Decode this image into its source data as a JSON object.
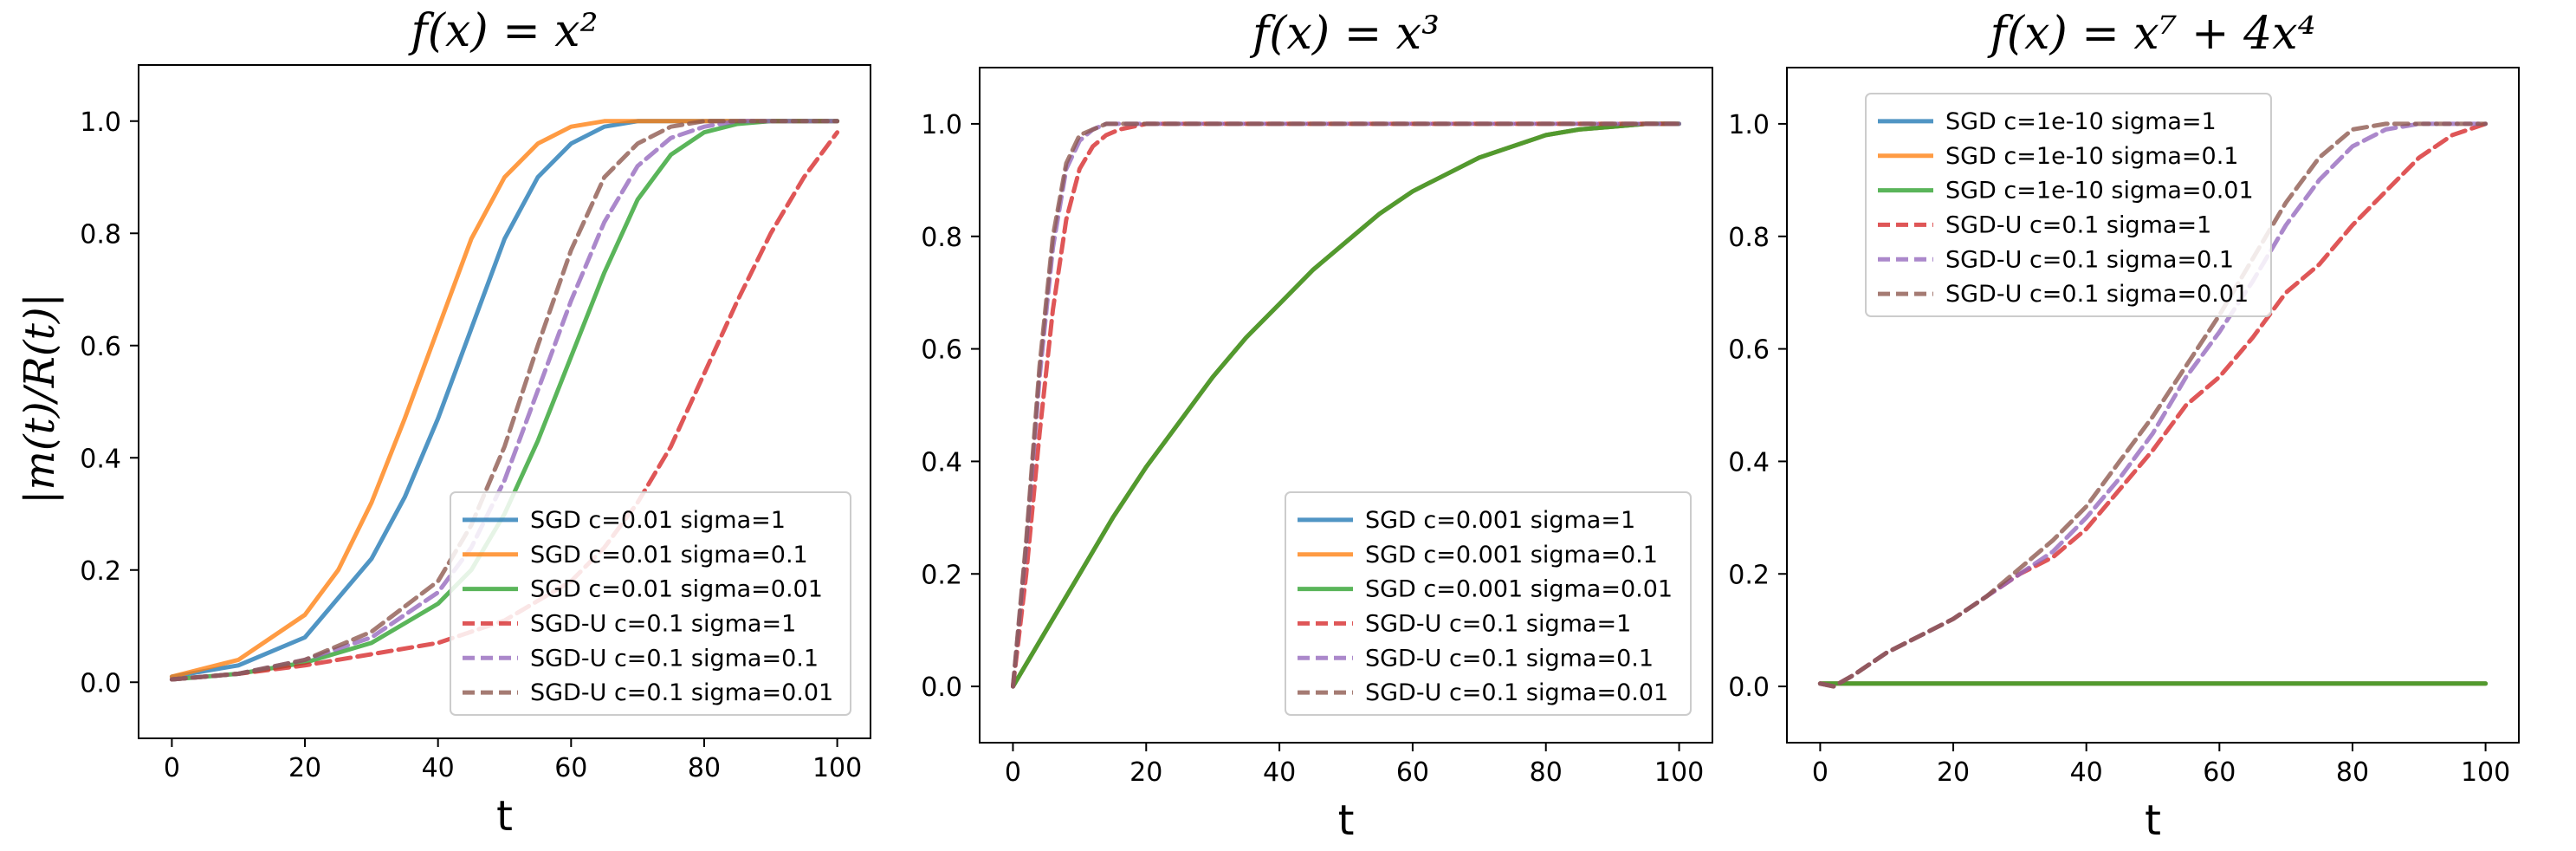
{
  "figure": {
    "ylabel": "|m(t)/R(t)|",
    "xlabel": "t"
  },
  "chart_data": [
    {
      "type": "line",
      "title": "f(x) = x²",
      "xlabel": "t",
      "ylabel": "|m(t)/R(t)|",
      "xlim": [
        -5,
        105
      ],
      "ylim": [
        -0.1,
        1.1
      ],
      "xticks": [
        0,
        20,
        40,
        60,
        80,
        100
      ],
      "yticks": [
        0.0,
        0.2,
        0.4,
        0.6,
        0.8,
        1.0
      ],
      "xtick_labels": [
        "0",
        "20",
        "40",
        "60",
        "80",
        "100"
      ],
      "ytick_labels": [
        "0.0",
        "0.2",
        "0.4",
        "0.6",
        "0.8",
        "1.0"
      ],
      "legend_position": "lower-right",
      "series": [
        {
          "name": "SGD c=0.01 sigma=1",
          "color": "#1f77b4",
          "dash": "solid",
          "x": [
            0,
            10,
            20,
            30,
            35,
            40,
            45,
            50,
            55,
            60,
            65,
            70,
            75,
            80,
            90,
            100
          ],
          "values": [
            0.01,
            0.03,
            0.08,
            0.22,
            0.33,
            0.47,
            0.63,
            0.79,
            0.9,
            0.96,
            0.99,
            1.0,
            1.0,
            1.0,
            1.0,
            1.0
          ]
        },
        {
          "name": "SGD c=0.01 sigma=0.1",
          "color": "#ff7f0e",
          "dash": "solid",
          "x": [
            0,
            10,
            20,
            25,
            30,
            35,
            40,
            45,
            50,
            55,
            60,
            65,
            70,
            75,
            80,
            100
          ],
          "values": [
            0.01,
            0.04,
            0.12,
            0.2,
            0.32,
            0.47,
            0.63,
            0.79,
            0.9,
            0.96,
            0.99,
            1.0,
            1.0,
            1.0,
            1.0,
            1.0
          ]
        },
        {
          "name": "SGD c=0.01 sigma=0.01",
          "color": "#2ca02c",
          "dash": "solid",
          "x": [
            0,
            10,
            20,
            30,
            40,
            45,
            50,
            55,
            60,
            65,
            70,
            75,
            80,
            85,
            90,
            100
          ],
          "values": [
            0.005,
            0.015,
            0.035,
            0.07,
            0.14,
            0.2,
            0.3,
            0.43,
            0.58,
            0.73,
            0.86,
            0.94,
            0.98,
            0.995,
            1.0,
            1.0
          ]
        },
        {
          "name": "SGD-U c=0.1 sigma=1",
          "color": "#d62728",
          "dash": "dashed",
          "x": [
            0,
            10,
            20,
            30,
            40,
            50,
            60,
            65,
            70,
            75,
            80,
            85,
            90,
            95,
            100
          ],
          "values": [
            0.005,
            0.015,
            0.03,
            0.05,
            0.07,
            0.11,
            0.18,
            0.24,
            0.32,
            0.42,
            0.55,
            0.68,
            0.8,
            0.9,
            0.98
          ]
        },
        {
          "name": "SGD-U c=0.1 sigma=0.1",
          "color": "#9467bd",
          "dash": "dashed",
          "x": [
            0,
            10,
            20,
            30,
            40,
            45,
            50,
            55,
            60,
            65,
            70,
            75,
            80,
            85,
            90,
            100
          ],
          "values": [
            0.005,
            0.015,
            0.04,
            0.08,
            0.16,
            0.24,
            0.36,
            0.52,
            0.68,
            0.82,
            0.92,
            0.97,
            0.99,
            1.0,
            1.0,
            1.0
          ]
        },
        {
          "name": "SGD-U c=0.1 sigma=0.01",
          "color": "#8c564b",
          "dash": "dashed",
          "x": [
            0,
            10,
            20,
            30,
            40,
            45,
            50,
            55,
            60,
            65,
            70,
            75,
            80,
            90,
            100
          ],
          "values": [
            0.005,
            0.015,
            0.04,
            0.09,
            0.18,
            0.28,
            0.42,
            0.6,
            0.77,
            0.9,
            0.96,
            0.99,
            1.0,
            1.0,
            1.0
          ]
        }
      ]
    },
    {
      "type": "line",
      "title": "f(x) = x³",
      "xlabel": "t",
      "ylabel": "",
      "xlim": [
        -5,
        105
      ],
      "ylim": [
        -0.1,
        1.1
      ],
      "xticks": [
        0,
        20,
        40,
        60,
        80,
        100
      ],
      "yticks": [
        0.0,
        0.2,
        0.4,
        0.6,
        0.8,
        1.0
      ],
      "xtick_labels": [
        "0",
        "20",
        "40",
        "60",
        "80",
        "100"
      ],
      "ytick_labels": [
        "0.0",
        "0.2",
        "0.4",
        "0.6",
        "0.8",
        "1.0"
      ],
      "legend_position": "lower-right",
      "series": [
        {
          "name": "SGD c=0.001 sigma=1",
          "color": "#1f77b4",
          "dash": "solid",
          "x": [
            0,
            5,
            10,
            15,
            20,
            25,
            30,
            35,
            40,
            45,
            50,
            55,
            60,
            65,
            70,
            75,
            80,
            85,
            90,
            95,
            100
          ],
          "values": [
            0.0,
            0.1,
            0.2,
            0.3,
            0.39,
            0.47,
            0.55,
            0.62,
            0.68,
            0.74,
            0.79,
            0.84,
            0.88,
            0.91,
            0.94,
            0.96,
            0.98,
            0.99,
            0.995,
            1.0,
            1.0
          ]
        },
        {
          "name": "SGD c=0.001 sigma=0.1",
          "color": "#ff7f0e",
          "dash": "solid",
          "x": [
            0,
            5,
            10,
            15,
            20,
            25,
            30,
            35,
            40,
            45,
            50,
            55,
            60,
            65,
            70,
            75,
            80,
            85,
            90,
            95,
            100
          ],
          "values": [
            0.0,
            0.1,
            0.2,
            0.3,
            0.39,
            0.47,
            0.55,
            0.62,
            0.68,
            0.74,
            0.79,
            0.84,
            0.88,
            0.91,
            0.94,
            0.96,
            0.98,
            0.99,
            0.995,
            1.0,
            1.0
          ]
        },
        {
          "name": "SGD c=0.001 sigma=0.01",
          "color": "#2ca02c",
          "dash": "solid",
          "x": [
            0,
            5,
            10,
            15,
            20,
            25,
            30,
            35,
            40,
            45,
            50,
            55,
            60,
            65,
            70,
            75,
            80,
            85,
            90,
            95,
            100
          ],
          "values": [
            0.0,
            0.1,
            0.2,
            0.3,
            0.39,
            0.47,
            0.55,
            0.62,
            0.68,
            0.74,
            0.79,
            0.84,
            0.88,
            0.91,
            0.94,
            0.96,
            0.98,
            0.99,
            0.995,
            1.0,
            1.0
          ]
        },
        {
          "name": "SGD-U c=0.1 sigma=1",
          "color": "#d62728",
          "dash": "dashed",
          "x": [
            0,
            2,
            4,
            6,
            8,
            10,
            12,
            14,
            16,
            18,
            20,
            25,
            30,
            100
          ],
          "values": [
            0.0,
            0.2,
            0.45,
            0.67,
            0.83,
            0.92,
            0.96,
            0.98,
            0.99,
            0.995,
            1.0,
            1.0,
            1.0,
            1.0
          ]
        },
        {
          "name": "SGD-U c=0.1 sigma=0.1",
          "color": "#9467bd",
          "dash": "dashed",
          "x": [
            0,
            2,
            4,
            6,
            8,
            10,
            12,
            14,
            16,
            20,
            100
          ],
          "values": [
            0.0,
            0.25,
            0.55,
            0.78,
            0.92,
            0.97,
            0.99,
            1.0,
            1.0,
            1.0,
            1.0
          ]
        },
        {
          "name": "SGD-U c=0.1 sigma=0.01",
          "color": "#8c564b",
          "dash": "dashed",
          "x": [
            0,
            2,
            4,
            6,
            8,
            10,
            12,
            14,
            16,
            20,
            100
          ],
          "values": [
            0.0,
            0.26,
            0.57,
            0.8,
            0.93,
            0.98,
            0.99,
            1.0,
            1.0,
            1.0,
            1.0
          ]
        }
      ]
    },
    {
      "type": "line",
      "title": "f(x) = x⁷ + 4x⁴",
      "xlabel": "t",
      "ylabel": "",
      "xlim": [
        -5,
        105
      ],
      "ylim": [
        -0.1,
        1.1
      ],
      "xticks": [
        0,
        20,
        40,
        60,
        80,
        100
      ],
      "yticks": [
        0.0,
        0.2,
        0.4,
        0.6,
        0.8,
        1.0
      ],
      "xtick_labels": [
        "0",
        "20",
        "40",
        "60",
        "80",
        "100"
      ],
      "ytick_labels": [
        "0.0",
        "0.2",
        "0.4",
        "0.6",
        "0.8",
        "1.0"
      ],
      "legend_position": "upper-left",
      "series": [
        {
          "name": "SGD c=1e-10 sigma=1",
          "color": "#1f77b4",
          "dash": "solid",
          "x": [
            0,
            100
          ],
          "values": [
            0.005,
            0.005
          ]
        },
        {
          "name": "SGD c=1e-10 sigma=0.1",
          "color": "#ff7f0e",
          "dash": "solid",
          "x": [
            0,
            100
          ],
          "values": [
            0.005,
            0.005
          ]
        },
        {
          "name": "SGD c=1e-10 sigma=0.01",
          "color": "#2ca02c",
          "dash": "solid",
          "x": [
            0,
            100
          ],
          "values": [
            0.005,
            0.005
          ]
        },
        {
          "name": "SGD-U c=0.1 sigma=1",
          "color": "#d62728",
          "dash": "dashed",
          "x": [
            0,
            2,
            5,
            10,
            15,
            20,
            25,
            30,
            35,
            40,
            45,
            50,
            55,
            60,
            65,
            70,
            75,
            80,
            85,
            90,
            95,
            100
          ],
          "values": [
            0.005,
            0.0,
            0.02,
            0.06,
            0.09,
            0.12,
            0.16,
            0.2,
            0.23,
            0.28,
            0.35,
            0.42,
            0.5,
            0.55,
            0.62,
            0.7,
            0.75,
            0.82,
            0.88,
            0.94,
            0.98,
            1.0
          ]
        },
        {
          "name": "SGD-U c=0.1 sigma=0.1",
          "color": "#9467bd",
          "dash": "dashed",
          "x": [
            0,
            2,
            5,
            10,
            15,
            20,
            25,
            30,
            35,
            40,
            45,
            50,
            55,
            60,
            65,
            70,
            75,
            80,
            85,
            90,
            95,
            100
          ],
          "values": [
            0.005,
            0.0,
            0.02,
            0.06,
            0.09,
            0.12,
            0.16,
            0.2,
            0.24,
            0.3,
            0.37,
            0.45,
            0.55,
            0.63,
            0.72,
            0.82,
            0.9,
            0.96,
            0.99,
            1.0,
            1.0,
            1.0
          ]
        },
        {
          "name": "SGD-U c=0.1 sigma=0.01",
          "color": "#8c564b",
          "dash": "dashed",
          "x": [
            0,
            2,
            5,
            10,
            15,
            20,
            25,
            30,
            35,
            40,
            45,
            50,
            55,
            60,
            65,
            70,
            75,
            80,
            85,
            90,
            100
          ],
          "values": [
            0.005,
            0.0,
            0.02,
            0.06,
            0.09,
            0.12,
            0.16,
            0.21,
            0.26,
            0.32,
            0.4,
            0.48,
            0.57,
            0.66,
            0.76,
            0.86,
            0.94,
            0.99,
            1.0,
            1.0,
            1.0
          ]
        }
      ]
    }
  ]
}
